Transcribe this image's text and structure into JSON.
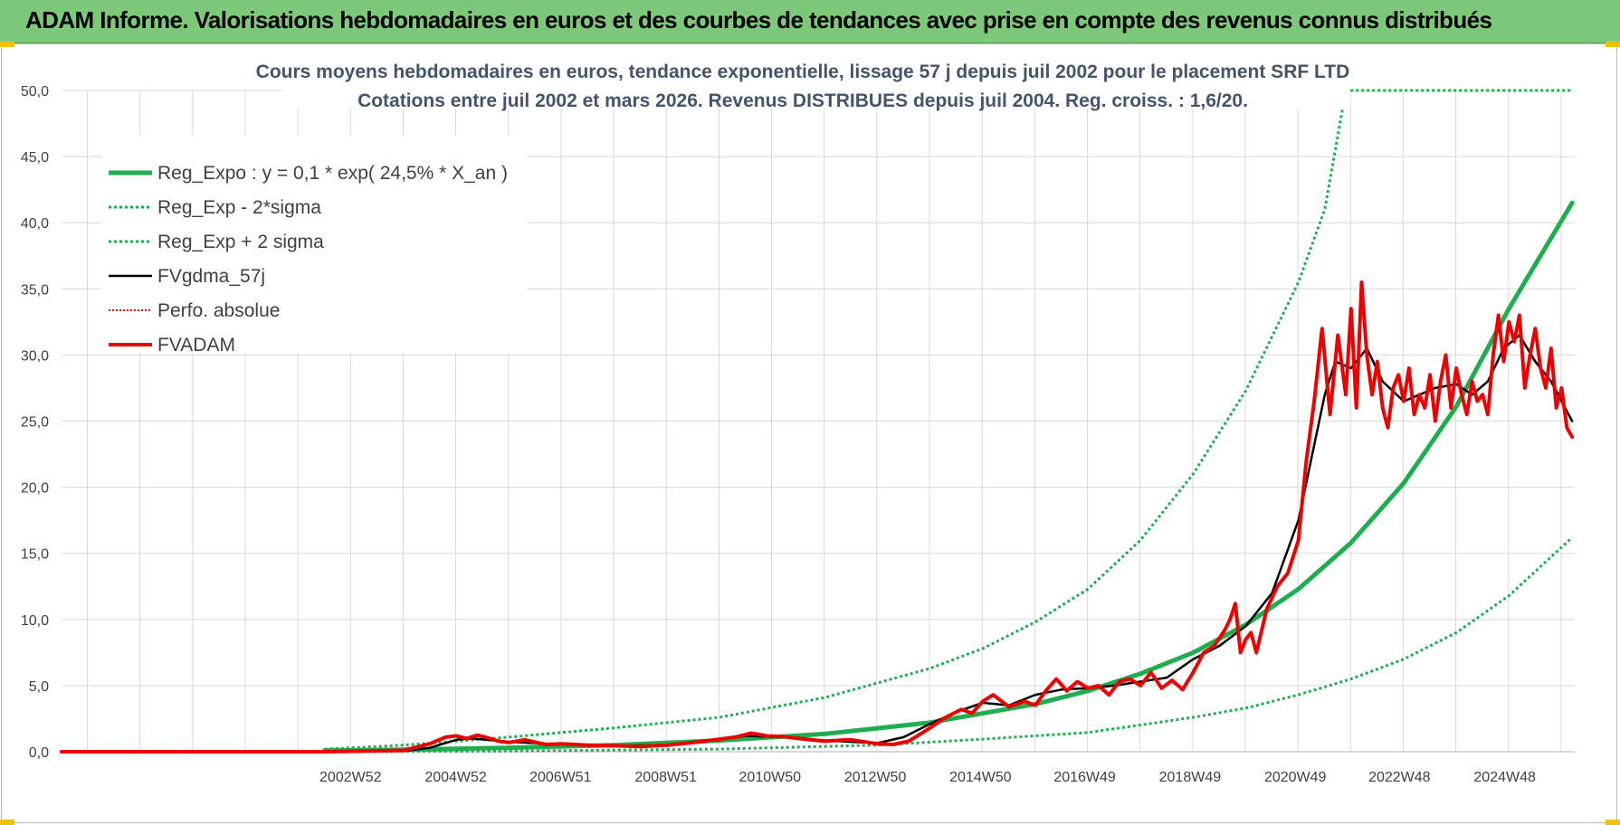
{
  "header": {
    "title": "ADAM Informe. Valorisations hebdomadaires en euros et des courbes de tendances avec prise en compte des revenus connus distribués"
  },
  "colors": {
    "banner_bg": "#7dc97a",
    "regression": "#1fae4f",
    "fv_black": "#000000",
    "fv_adam": "#ee0000",
    "perfo": "#ee0000",
    "grid": "#d9d9d9",
    "title_text": "#44546a"
  },
  "chart_data": {
    "type": "line",
    "title": "Cours moyens hebdomadaires en euros, tendance exponentielle, lissage 57 j depuis juil 2002 pour le placement SRF LTD",
    "subtitle": "Cotations entre juil 2002 et mars 2026. Revenus DISTRIBUES depuis juil 2004. Reg. croiss. : 1,6/20.",
    "xlabel": "",
    "ylabel": "",
    "xlim": [
      1997.5,
      2026.25
    ],
    "ylim": [
      0,
      50
    ],
    "y_ticks": [
      0,
      5,
      10,
      15,
      20,
      25,
      30,
      35,
      40,
      45,
      50
    ],
    "y_tick_labels": [
      "0,0",
      "5,0",
      "10,0",
      "15,0",
      "20,0",
      "25,0",
      "30,0",
      "35,0",
      "40,0",
      "45,0",
      "50,0"
    ],
    "x_tick_labels": [
      "2002W52",
      "2004W52",
      "2006W51",
      "2008W51",
      "2010W50",
      "2012W50",
      "2014W50",
      "2016W49",
      "2018W49",
      "2020W49",
      "2022W48",
      "2024W48"
    ],
    "x_tick_positions": [
      2002.99,
      2004.99,
      2006.98,
      2008.98,
      2010.96,
      2012.96,
      2014.96,
      2016.94,
      2018.94,
      2020.94,
      2022.92,
      2024.92
    ],
    "grid": true,
    "legend_position": "top-left",
    "legend": [
      {
        "label": "Reg_Expo : y = 0,1 * exp( 24,5% *  X_an )",
        "series": "reg"
      },
      {
        "label": "Reg_Exp - 2*sigma",
        "series": "reg_low"
      },
      {
        "label": "Reg_Exp + 2 sigma",
        "series": "reg_high"
      },
      {
        "label": "FVgdma_57j",
        "series": "fvgdma"
      },
      {
        "label": "Perfo. absolue",
        "series": "perfo"
      },
      {
        "label": "FVADAM",
        "series": "fvadam"
      }
    ],
    "series": [
      {
        "name": "Reg_Expo",
        "key": "reg",
        "style": "solid-thick",
        "color": "#1fae4f",
        "x": [
          2002.5,
          2004.0,
          2006.0,
          2008.0,
          2010.0,
          2012.0,
          2014.0,
          2015.0,
          2016.0,
          2017.0,
          2018.0,
          2019.0,
          2020.0,
          2021.0,
          2022.0,
          2023.0,
          2024.0,
          2025.0,
          2026.2
        ],
        "values": [
          0.1,
          0.15,
          0.3,
          0.5,
          0.85,
          1.35,
          2.2,
          2.9,
          3.6,
          4.6,
          5.9,
          7.5,
          9.6,
          12.3,
          15.8,
          20.3,
          26.1,
          33.5,
          41.5
        ]
      },
      {
        "name": "Reg_Exp - 2*sigma",
        "key": "reg_low",
        "style": "dotted",
        "color": "#1fae4f",
        "x": [
          2002.5,
          2006.0,
          2010.0,
          2013.0,
          2015.0,
          2017.0,
          2019.0,
          2020.0,
          2021.0,
          2022.0,
          2023.0,
          2024.0,
          2025.0,
          2026.2
        ],
        "values": [
          0.0,
          0.05,
          0.2,
          0.5,
          0.95,
          1.45,
          2.6,
          3.3,
          4.3,
          5.5,
          7.0,
          9.0,
          11.8,
          16.2
        ]
      },
      {
        "name": "Reg_Exp + 2 sigma",
        "key": "reg_high",
        "style": "dotted",
        "color": "#1fae4f",
        "x": [
          2002.5,
          2004.0,
          2006.0,
          2008.0,
          2010.0,
          2012.0,
          2014.0,
          2015.0,
          2016.0,
          2017.0,
          2018.0,
          2019.0,
          2020.0,
          2021.0,
          2021.5,
          2021.9,
          2026.2
        ],
        "values": [
          0.2,
          0.5,
          1.1,
          1.8,
          2.6,
          4.1,
          6.3,
          7.8,
          9.8,
          12.3,
          16.0,
          21.0,
          27.3,
          35.5,
          41.0,
          50.0,
          50.0
        ]
      },
      {
        "name": "FVgdma_57j",
        "key": "fvgdma",
        "style": "solid",
        "color": "#000000",
        "x": [
          1997.5,
          2002.5,
          2004.0,
          2004.5,
          2005.0,
          2005.3,
          2006.0,
          2007.0,
          2008.0,
          2009.0,
          2010.0,
          2010.5,
          2011.5,
          2012.0,
          2013.0,
          2013.5,
          2014.0,
          2014.5,
          2015.0,
          2015.5,
          2016.0,
          2016.5,
          2017.0,
          2017.5,
          2018.0,
          2018.5,
          2019.0,
          2019.5,
          2020.0,
          2020.5,
          2021.0,
          2021.5,
          2021.7,
          2022.0,
          2022.3,
          2022.6,
          2023.0,
          2023.3,
          2023.6,
          2024.0,
          2024.3,
          2024.6,
          2024.9,
          2025.2,
          2025.5,
          2025.8,
          2026.2
        ],
        "values": [
          0,
          0,
          0.05,
          0.3,
          0.9,
          1.0,
          0.75,
          0.55,
          0.45,
          0.5,
          0.9,
          1.2,
          1.05,
          0.85,
          0.65,
          1.1,
          2.1,
          3.0,
          3.7,
          3.5,
          4.3,
          4.7,
          4.8,
          5.0,
          5.3,
          5.6,
          7.0,
          8.0,
          9.5,
          12.0,
          17.5,
          27.0,
          29.5,
          29.0,
          30.5,
          28.0,
          26.5,
          27.0,
          27.5,
          27.8,
          27.0,
          28.0,
          30.5,
          31.5,
          29.5,
          28.0,
          25.0
        ]
      },
      {
        "name": "Perfo. absolue",
        "key": "perfo",
        "style": "dotted",
        "color": "#ee0000",
        "x": [],
        "values": []
      },
      {
        "name": "FVADAM",
        "key": "fvadam",
        "style": "solid-thick",
        "color": "#ee0000",
        "x": [
          1997.5,
          2002.5,
          2004.0,
          2004.5,
          2004.8,
          2005.0,
          2005.2,
          2005.4,
          2005.6,
          2005.8,
          2006.0,
          2006.3,
          2006.7,
          2007.0,
          2007.5,
          2008.0,
          2008.5,
          2009.0,
          2009.5,
          2010.0,
          2010.3,
          2010.6,
          2010.9,
          2011.2,
          2011.5,
          2012.0,
          2012.5,
          2013.0,
          2013.3,
          2013.6,
          2014.0,
          2014.3,
          2014.6,
          2014.8,
          2015.0,
          2015.2,
          2015.5,
          2015.8,
          2016.0,
          2016.2,
          2016.4,
          2016.6,
          2016.8,
          2017.0,
          2017.2,
          2017.4,
          2017.6,
          2017.8,
          2018.0,
          2018.2,
          2018.4,
          2018.6,
          2018.8,
          2019.0,
          2019.2,
          2019.4,
          2019.6,
          2019.7,
          2019.8,
          2019.9,
          2020.0,
          2020.1,
          2020.2,
          2020.4,
          2020.6,
          2020.8,
          2021.0,
          2021.15,
          2021.3,
          2021.45,
          2021.6,
          2021.75,
          2021.9,
          2022.0,
          2022.1,
          2022.2,
          2022.3,
          2022.4,
          2022.5,
          2022.6,
          2022.7,
          2022.8,
          2022.9,
          2023.0,
          2023.1,
          2023.2,
          2023.3,
          2023.4,
          2023.5,
          2023.6,
          2023.7,
          2023.8,
          2023.9,
          2024.0,
          2024.1,
          2024.2,
          2024.3,
          2024.4,
          2024.5,
          2024.6,
          2024.7,
          2024.8,
          2024.9,
          2025.0,
          2025.1,
          2025.2,
          2025.3,
          2025.4,
          2025.5,
          2025.6,
          2025.7,
          2025.8,
          2025.9,
          2026.0,
          2026.1,
          2026.2
        ],
        "values": [
          0,
          0,
          0.1,
          0.6,
          1.1,
          1.2,
          1.0,
          1.25,
          1.05,
          0.8,
          0.7,
          0.9,
          0.55,
          0.6,
          0.5,
          0.45,
          0.4,
          0.5,
          0.7,
          0.95,
          1.1,
          1.4,
          1.2,
          1.15,
          1.0,
          0.8,
          0.9,
          0.6,
          0.55,
          0.8,
          1.8,
          2.6,
          3.2,
          2.9,
          3.8,
          4.3,
          3.4,
          3.8,
          3.5,
          4.6,
          5.5,
          4.6,
          5.3,
          4.8,
          5.0,
          4.3,
          5.3,
          5.5,
          5.0,
          6.0,
          4.8,
          5.4,
          4.7,
          6.0,
          7.5,
          8.0,
          9.2,
          10.0,
          11.2,
          7.5,
          8.5,
          9.0,
          7.5,
          10.8,
          12.5,
          13.5,
          16.0,
          22.0,
          26.5,
          32.0,
          25.5,
          31.5,
          27.0,
          33.5,
          26.0,
          35.5,
          30.0,
          27.0,
          29.5,
          26.0,
          24.5,
          27.5,
          28.5,
          26.5,
          29.0,
          25.5,
          27.0,
          26.0,
          28.5,
          25.0,
          28.0,
          30.0,
          26.0,
          29.0,
          27.0,
          25.5,
          28.0,
          26.5,
          27.0,
          25.5,
          30.0,
          33.0,
          29.5,
          32.5,
          31.0,
          33.0,
          27.5,
          30.0,
          32.0,
          29.0,
          27.5,
          30.5,
          26.0,
          27.5,
          24.5,
          23.8
        ]
      }
    ]
  }
}
